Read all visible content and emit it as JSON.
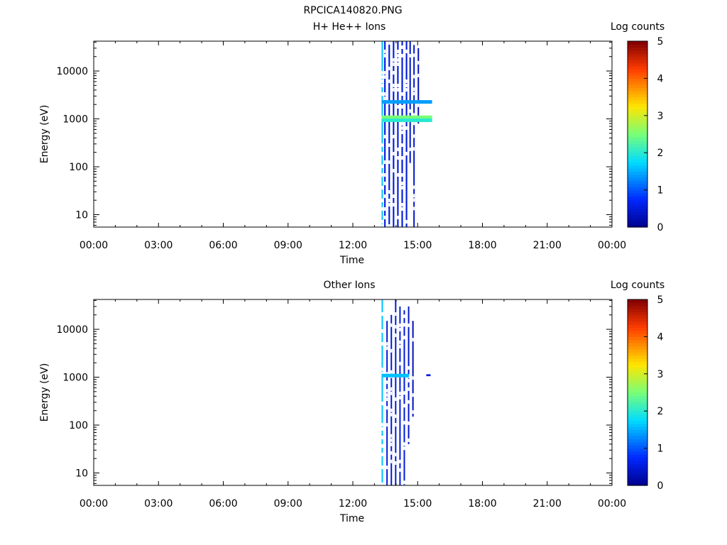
{
  "figure_title": "RPCICA140820.PNG",
  "chart_data": [
    {
      "type": "heatmap",
      "title": "H+ He++ Ions",
      "xlabel": "Time",
      "ylabel": "Energy (eV)",
      "x_ticks": [
        "00:00",
        "03:00",
        "06:00",
        "09:00",
        "12:00",
        "15:00",
        "18:00",
        "21:00",
        "00:00"
      ],
      "x_range_hours": [
        0,
        24
      ],
      "y_scale": "log",
      "y_ticks": [
        10,
        100,
        1000,
        10000
      ],
      "y_tick_labels": [
        "10",
        "100",
        "1000",
        "10000"
      ],
      "y_range": [
        5.5,
        42000
      ],
      "colorbar": {
        "label": "Log counts",
        "ticks": [
          "0",
          "1",
          "2",
          "3",
          "4",
          "5"
        ],
        "range": [
          0,
          5
        ]
      },
      "data_window_hours": [
        13.33,
        15.67
      ],
      "columns": [
        {
          "t": 13.33,
          "emin": 5.5,
          "emax": 42000,
          "level": 1.6,
          "width": 0.04
        },
        {
          "t": 13.45,
          "emin": 5.5,
          "emax": 42000,
          "level": 0.5,
          "width": 0.07
        },
        {
          "t": 13.65,
          "emin": 5.5,
          "emax": 42000,
          "level": 0.5,
          "width": 0.07
        },
        {
          "t": 13.85,
          "emin": 5.5,
          "emax": 42000,
          "level": 0.5,
          "width": 0.07
        },
        {
          "t": 14.05,
          "emin": 5.5,
          "emax": 42000,
          "level": 0.5,
          "width": 0.07
        },
        {
          "t": 14.25,
          "emin": 5.5,
          "emax": 42000,
          "level": 0.5,
          "width": 0.07
        },
        {
          "t": 14.45,
          "emin": 5.5,
          "emax": 42000,
          "level": 0.5,
          "width": 0.07
        },
        {
          "t": 14.62,
          "emin": 120,
          "emax": 42000,
          "level": 0.4,
          "width": 0.05
        },
        {
          "t": 14.8,
          "emin": 5.5,
          "emax": 35000,
          "level": 0.4,
          "width": 0.05
        },
        {
          "t": 15.0,
          "emin": 800,
          "emax": 30000,
          "level": 0.3,
          "width": 0.04
        },
        {
          "t": 15.3,
          "emin": 1000,
          "emax": 1100,
          "level": 0.3,
          "width": 0.2
        }
      ],
      "bands": [
        {
          "t0": 13.33,
          "t1": 15.67,
          "e": 1100,
          "level": 2.5
        },
        {
          "t0": 13.33,
          "t1": 15.67,
          "e": 950,
          "level": 2.0
        },
        {
          "t0": 13.33,
          "t1": 15.67,
          "e": 2300,
          "level": 1.4
        }
      ]
    },
    {
      "type": "heatmap",
      "title": "Other Ions",
      "xlabel": "Time",
      "ylabel": "Energy (eV)",
      "x_ticks": [
        "00:00",
        "03:00",
        "06:00",
        "09:00",
        "12:00",
        "15:00",
        "18:00",
        "21:00",
        "00:00"
      ],
      "x_range_hours": [
        0,
        24
      ],
      "y_scale": "log",
      "y_ticks": [
        10,
        100,
        1000,
        10000
      ],
      "y_tick_labels": [
        "10",
        "100",
        "1000",
        "10000"
      ],
      "y_range": [
        5.5,
        42000
      ],
      "colorbar": {
        "label": "Log counts",
        "ticks": [
          "0",
          "1",
          "2",
          "3",
          "4",
          "5"
        ],
        "range": [
          0,
          5
        ]
      },
      "data_window_hours": [
        13.33,
        15.67
      ],
      "columns": [
        {
          "t": 13.33,
          "emin": 5.5,
          "emax": 42000,
          "level": 1.6,
          "width": 0.04
        },
        {
          "t": 13.55,
          "emin": 5.5,
          "emax": 15000,
          "level": 0.5,
          "width": 0.06
        },
        {
          "t": 13.75,
          "emin": 5.5,
          "emax": 20000,
          "level": 0.5,
          "width": 0.06
        },
        {
          "t": 13.95,
          "emin": 5.5,
          "emax": 42000,
          "level": 0.5,
          "width": 0.06
        },
        {
          "t": 14.15,
          "emin": 5.5,
          "emax": 30000,
          "level": 0.5,
          "width": 0.06
        },
        {
          "t": 14.35,
          "emin": 5.5,
          "emax": 25000,
          "level": 0.5,
          "width": 0.06
        },
        {
          "t": 14.55,
          "emin": 40,
          "emax": 30000,
          "level": 0.4,
          "width": 0.05
        },
        {
          "t": 14.75,
          "emin": 150,
          "emax": 15000,
          "level": 0.3,
          "width": 0.04
        },
        {
          "t": 15.4,
          "emin": 1050,
          "emax": 1150,
          "level": 0.5,
          "width": 0.2
        }
      ],
      "bands": [
        {
          "t0": 13.33,
          "t1": 14.6,
          "e": 1100,
          "level": 1.6
        }
      ]
    }
  ]
}
